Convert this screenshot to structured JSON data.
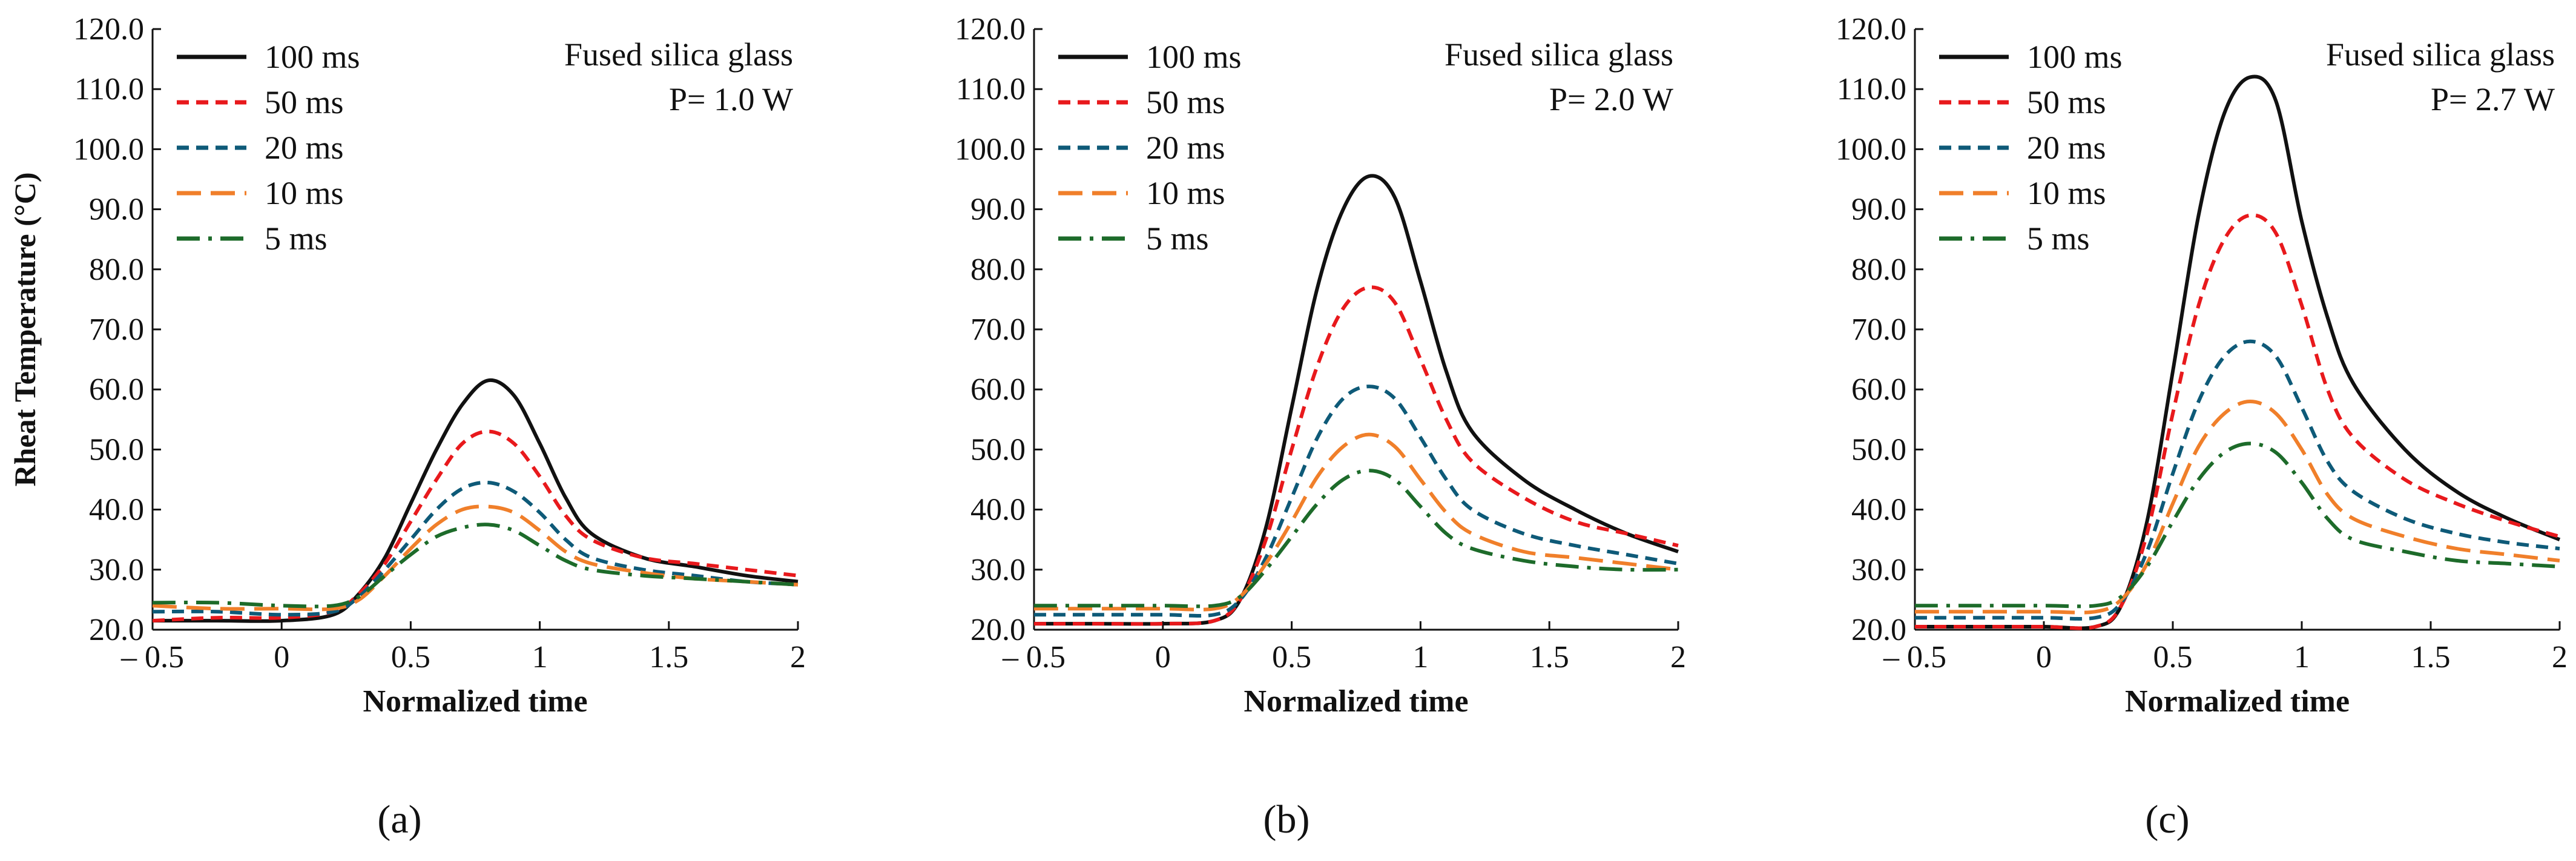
{
  "figure": {
    "panels": [
      {
        "label": "(a)",
        "letter": "a",
        "annotation_line1": "Fused silica glass",
        "annotation_line2": "P= 1.0 W"
      },
      {
        "label": "(b)",
        "letter": "b",
        "annotation_line1": "Fused silica glass",
        "annotation_line2": "P= 2.0 W"
      },
      {
        "label": "(c)",
        "letter": "c",
        "annotation_line1": "Fused silica glass",
        "annotation_line2": "P= 2.7 W"
      }
    ]
  },
  "chart_data": [
    {
      "type": "line",
      "title": "",
      "annotation": [
        "Fused silica glass",
        "P= 1.0 W"
      ],
      "xlabel": "Normalized time",
      "ylabel": "Rheat Temperature  (°C)",
      "xlim": [
        -0.5,
        2
      ],
      "ylim": [
        20,
        120
      ],
      "xticks": [
        -0.5,
        0,
        0.5,
        1,
        1.5,
        2
      ],
      "xtick_labels": [
        "– 0.5",
        "0",
        "0.5",
        "1",
        "1.5",
        "2"
      ],
      "yticks": [
        20,
        30,
        40,
        50,
        60,
        70,
        80,
        90,
        100,
        110,
        120
      ],
      "ytick_labels": [
        "20.0",
        "30.0",
        "40.0",
        "50.0",
        "60.0",
        "70.0",
        "80.0",
        "90.0",
        "100.0",
        "110.0",
        "120.0"
      ],
      "legend_position": "top-left",
      "series": [
        {
          "name": "100 ms",
          "color": "#111111",
          "dash": "solid",
          "x": [
            -0.5,
            -0.25,
            0,
            0.2,
            0.3,
            0.4,
            0.5,
            0.6,
            0.7,
            0.8,
            0.9,
            1.0,
            1.1,
            1.2,
            1.4,
            1.6,
            1.8,
            2.0
          ],
          "values": [
            21.5,
            21.5,
            21.5,
            22.5,
            26,
            32,
            41,
            50,
            57.5,
            61.5,
            59,
            51,
            42,
            36,
            32,
            30.5,
            29,
            28
          ]
        },
        {
          "name": "50 ms",
          "color": "#e8191c",
          "dash": "dashed",
          "x": [
            -0.5,
            -0.25,
            0,
            0.2,
            0.3,
            0.4,
            0.5,
            0.6,
            0.7,
            0.8,
            0.9,
            1.0,
            1.1,
            1.2,
            1.4,
            1.6,
            1.8,
            2.0
          ],
          "values": [
            21.5,
            22,
            22,
            23,
            26,
            31,
            38,
            45,
            51,
            53,
            51,
            45.5,
            39,
            35,
            32,
            31,
            30,
            29
          ]
        },
        {
          "name": "20 ms",
          "color": "#0e5a78",
          "dash": "dashed",
          "x": [
            -0.5,
            -0.25,
            0,
            0.2,
            0.3,
            0.4,
            0.5,
            0.6,
            0.7,
            0.8,
            0.9,
            1.0,
            1.1,
            1.2,
            1.4,
            1.6,
            1.8,
            2.0
          ],
          "values": [
            23,
            23,
            22.5,
            23,
            25.5,
            30,
            35,
            40,
            43.5,
            44.5,
            43,
            39.5,
            35,
            32,
            30,
            29,
            28,
            27.5
          ]
        },
        {
          "name": "10 ms",
          "color": "#f07f2a",
          "dash": "longdash",
          "x": [
            -0.5,
            -0.25,
            0,
            0.2,
            0.3,
            0.4,
            0.5,
            0.6,
            0.7,
            0.8,
            0.9,
            1.0,
            1.1,
            1.2,
            1.4,
            1.6,
            1.8,
            2.0
          ],
          "values": [
            24,
            23.5,
            23.5,
            23.5,
            25,
            29,
            33.5,
            37.5,
            40,
            40.5,
            39.5,
            36.5,
            33,
            31,
            29.5,
            28.5,
            28,
            27.5
          ]
        },
        {
          "name": "5 ms",
          "color": "#1d6b2a",
          "dash": "dashdot",
          "x": [
            -0.5,
            -0.25,
            0,
            0.2,
            0.3,
            0.4,
            0.5,
            0.6,
            0.7,
            0.8,
            0.9,
            1.0,
            1.1,
            1.2,
            1.4,
            1.6,
            1.8,
            2.0
          ],
          "values": [
            24.5,
            24.5,
            24,
            24,
            25.5,
            29,
            32.5,
            35.5,
            37,
            37.5,
            36.5,
            34,
            31.5,
            30,
            29,
            28.5,
            28,
            27.5
          ]
        }
      ]
    },
    {
      "type": "line",
      "title": "",
      "annotation": [
        "Fused silica glass",
        "P= 2.0 W"
      ],
      "xlabel": "Normalized time",
      "ylabel": "",
      "xlim": [
        -0.5,
        2
      ],
      "ylim": [
        20,
        120
      ],
      "xticks": [
        -0.5,
        0,
        0.5,
        1,
        1.5,
        2
      ],
      "xtick_labels": [
        "– 0.5",
        "0",
        "0.5",
        "1",
        "1.5",
        "2"
      ],
      "yticks": [
        20,
        30,
        40,
        50,
        60,
        70,
        80,
        90,
        100,
        110,
        120
      ],
      "ytick_labels": [
        "20.0",
        "30.0",
        "40.0",
        "50.0",
        "60.0",
        "70.0",
        "80.0",
        "90.0",
        "100.0",
        "110.0",
        "120.0"
      ],
      "legend_position": "top-left",
      "series": [
        {
          "name": "100 ms",
          "color": "#111111",
          "dash": "solid",
          "x": [
            -0.5,
            -0.25,
            0,
            0.2,
            0.3,
            0.4,
            0.5,
            0.6,
            0.7,
            0.8,
            0.9,
            1.0,
            1.1,
            1.2,
            1.4,
            1.6,
            1.8,
            2.0
          ],
          "values": [
            21,
            21,
            21,
            21.5,
            25,
            37,
            57,
            77,
            90,
            95.5,
            92,
            78,
            63,
            53,
            45,
            40,
            36,
            33
          ]
        },
        {
          "name": "50 ms",
          "color": "#e8191c",
          "dash": "dashed",
          "x": [
            -0.5,
            -0.25,
            0,
            0.2,
            0.3,
            0.4,
            0.5,
            0.6,
            0.7,
            0.8,
            0.9,
            1.0,
            1.1,
            1.2,
            1.4,
            1.6,
            1.8,
            2.0
          ],
          "values": [
            21,
            21,
            21,
            21.5,
            25,
            35,
            50,
            64,
            73.5,
            77,
            74.5,
            65,
            55,
            48,
            42,
            38,
            36,
            34
          ]
        },
        {
          "name": "20 ms",
          "color": "#0e5a78",
          "dash": "dashed",
          "x": [
            -0.5,
            -0.25,
            0,
            0.2,
            0.3,
            0.4,
            0.5,
            0.6,
            0.7,
            0.8,
            0.9,
            1.0,
            1.1,
            1.2,
            1.4,
            1.6,
            1.8,
            2.0
          ],
          "values": [
            22.5,
            22.5,
            22.5,
            22.5,
            25,
            32,
            42,
            52,
            58.5,
            60.5,
            58.5,
            52,
            45,
            40,
            36,
            34,
            32.5,
            31
          ]
        },
        {
          "name": "10 ms",
          "color": "#f07f2a",
          "dash": "longdash",
          "x": [
            -0.5,
            -0.25,
            0,
            0.2,
            0.3,
            0.4,
            0.5,
            0.6,
            0.7,
            0.8,
            0.9,
            1.0,
            1.1,
            1.2,
            1.4,
            1.6,
            1.8,
            2.0
          ],
          "values": [
            23.5,
            23.5,
            23.5,
            23.5,
            25.5,
            31,
            38,
            45.5,
            50.5,
            52.5,
            50.5,
            45,
            39.5,
            36,
            33,
            32,
            31,
            30
          ]
        },
        {
          "name": "5 ms",
          "color": "#1d6b2a",
          "dash": "dashdot",
          "x": [
            -0.5,
            -0.25,
            0,
            0.2,
            0.3,
            0.4,
            0.5,
            0.6,
            0.7,
            0.8,
            0.9,
            1.0,
            1.1,
            1.2,
            1.4,
            1.6,
            1.8,
            2.0
          ],
          "values": [
            24,
            24,
            24,
            24,
            25.5,
            30,
            35.5,
            41,
            45,
            46.5,
            45,
            40.5,
            36,
            33.5,
            31.5,
            30.5,
            30,
            30
          ]
        }
      ]
    },
    {
      "type": "line",
      "title": "",
      "annotation": [
        "Fused silica glass",
        "P= 2.7 W"
      ],
      "xlabel": "Normalized time",
      "ylabel": "",
      "xlim": [
        -0.5,
        2
      ],
      "ylim": [
        20,
        120
      ],
      "xticks": [
        -0.5,
        0,
        0.5,
        1,
        1.5,
        2
      ],
      "xtick_labels": [
        "– 0.5",
        "0",
        "0.5",
        "1",
        "1.5",
        "2"
      ],
      "yticks": [
        20,
        30,
        40,
        50,
        60,
        70,
        80,
        90,
        100,
        110,
        120
      ],
      "ytick_labels": [
        "20.0",
        "30.0",
        "40.0",
        "50.0",
        "60.0",
        "70.0",
        "80.0",
        "90.0",
        "100.0",
        "110.0",
        "120.0"
      ],
      "legend_position": "top-left",
      "series": [
        {
          "name": "100 ms",
          "color": "#111111",
          "dash": "solid",
          "x": [
            -0.5,
            -0.25,
            0,
            0.2,
            0.3,
            0.4,
            0.5,
            0.6,
            0.7,
            0.8,
            0.9,
            1.0,
            1.1,
            1.2,
            1.4,
            1.6,
            1.8,
            2.0
          ],
          "values": [
            20.5,
            20.5,
            20.5,
            20.5,
            24,
            38,
            63,
            89,
            106,
            112,
            108,
            88,
            72,
            61,
            50,
            43,
            38.5,
            35
          ]
        },
        {
          "name": "50 ms",
          "color": "#e8191c",
          "dash": "dashed",
          "x": [
            -0.5,
            -0.25,
            0,
            0.2,
            0.3,
            0.4,
            0.5,
            0.6,
            0.7,
            0.8,
            0.9,
            1.0,
            1.1,
            1.2,
            1.4,
            1.6,
            1.8,
            2.0
          ],
          "values": [
            20.5,
            20.5,
            20.5,
            20.5,
            24,
            36,
            56,
            74,
            85,
            89,
            86,
            74,
            60,
            52,
            45,
            41,
            38,
            35.5
          ]
        },
        {
          "name": "20 ms",
          "color": "#0e5a78",
          "dash": "dashed",
          "x": [
            -0.5,
            -0.25,
            0,
            0.2,
            0.3,
            0.4,
            0.5,
            0.6,
            0.7,
            0.8,
            0.9,
            1.0,
            1.1,
            1.2,
            1.4,
            1.6,
            1.8,
            2.0
          ],
          "values": [
            22,
            22,
            22,
            22,
            24.5,
            33,
            46,
            58,
            65.5,
            68,
            65.5,
            57,
            48,
            43,
            38.5,
            36,
            34.5,
            33.5
          ]
        },
        {
          "name": "10 ms",
          "color": "#f07f2a",
          "dash": "longdash",
          "x": [
            -0.5,
            -0.25,
            0,
            0.2,
            0.3,
            0.4,
            0.5,
            0.6,
            0.7,
            0.8,
            0.9,
            1.0,
            1.1,
            1.2,
            1.4,
            1.6,
            1.8,
            2.0
          ],
          "values": [
            23,
            23,
            23,
            23,
            25,
            31,
            41,
            50.5,
            56,
            58,
            56,
            50,
            42.5,
            38.5,
            35.5,
            33.5,
            32.5,
            31.5
          ]
        },
        {
          "name": "5 ms",
          "color": "#1d6b2a",
          "dash": "dashdot",
          "x": [
            -0.5,
            -0.25,
            0,
            0.2,
            0.3,
            0.4,
            0.5,
            0.6,
            0.7,
            0.8,
            0.9,
            1.0,
            1.1,
            1.2,
            1.4,
            1.6,
            1.8,
            2.0
          ],
          "values": [
            24,
            24,
            24,
            24,
            25.5,
            30.5,
            38,
            45,
            49.5,
            51,
            49.5,
            44.5,
            38.5,
            35,
            33,
            31.5,
            31,
            30.5
          ]
        }
      ]
    }
  ]
}
